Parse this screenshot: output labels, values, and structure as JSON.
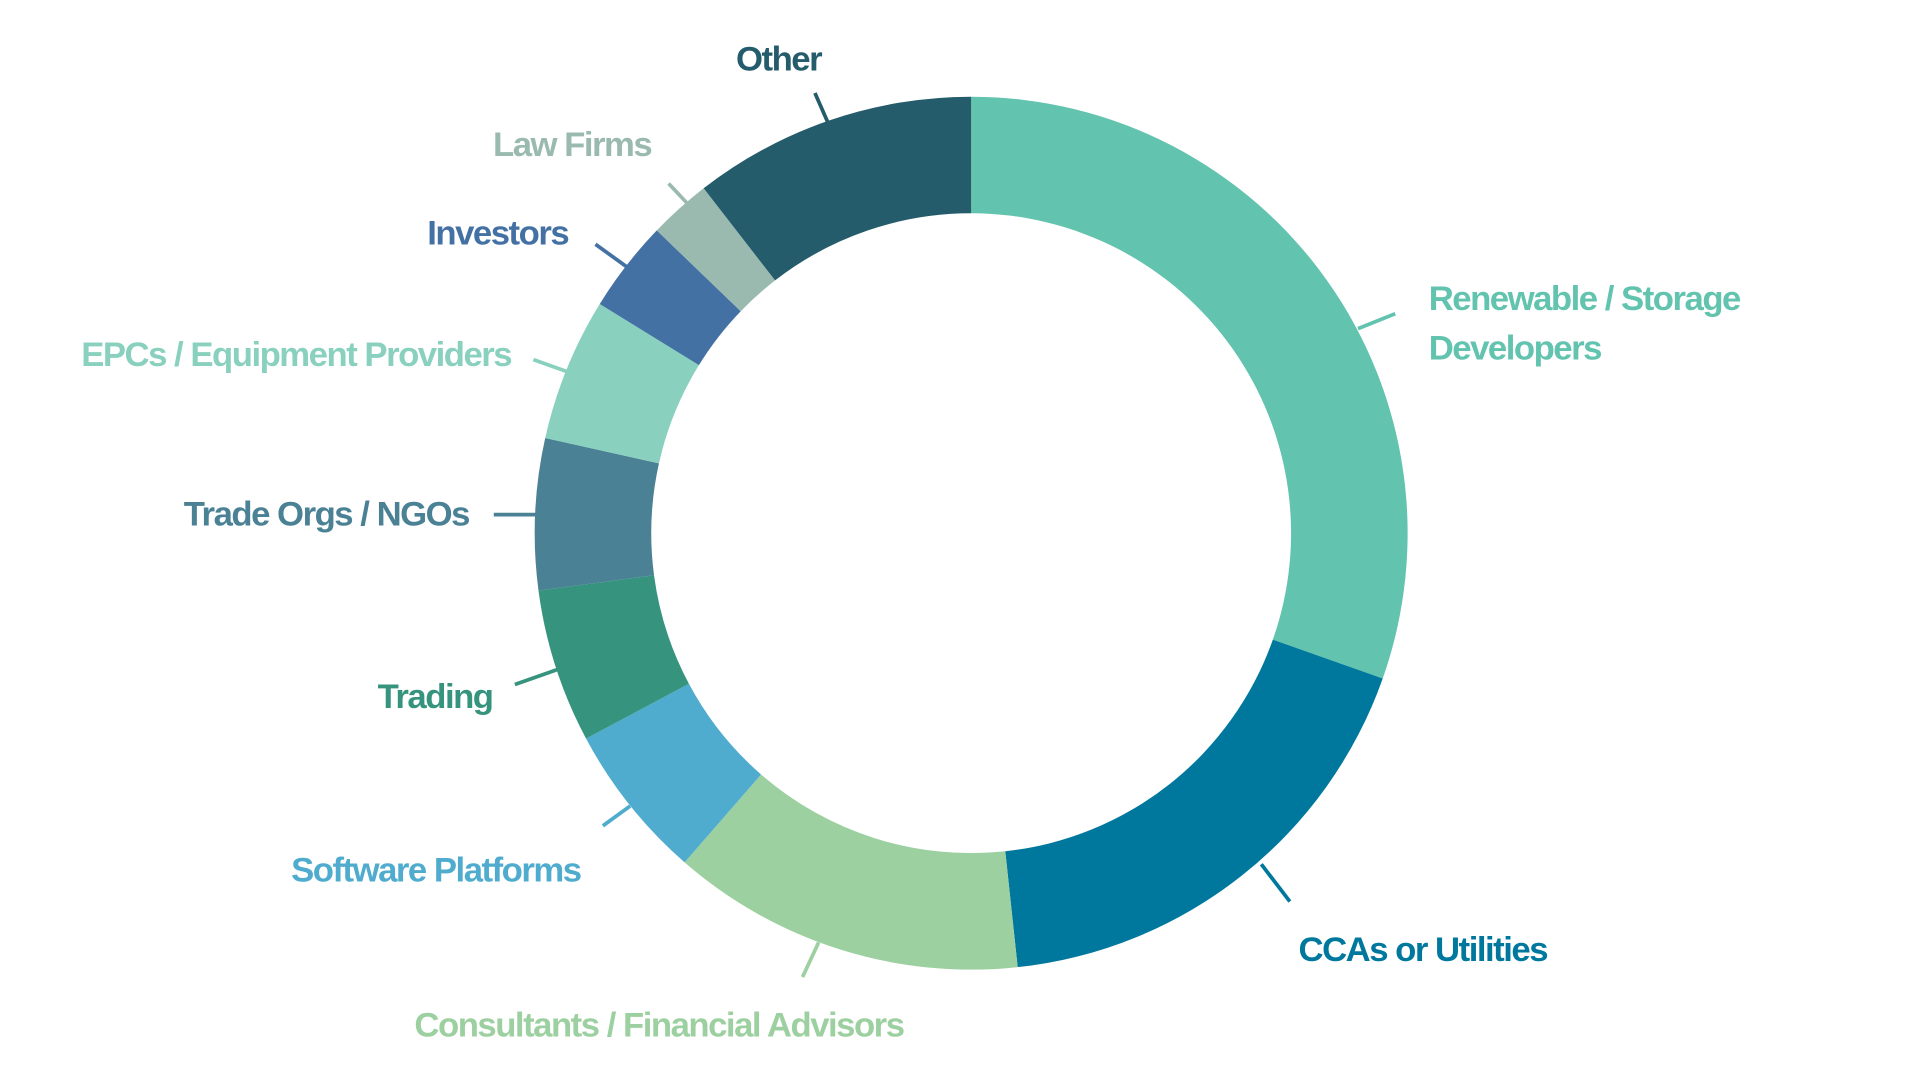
{
  "chart_data": {
    "type": "pie",
    "subtype": "donut",
    "title": "",
    "start_angle": "top, clockwise",
    "categories": [
      "Renewable / Storage Developers",
      "CCAs or Utilities",
      "Consultants / Financial Advisors",
      "Software Platforms",
      "Trading",
      "Trade Orgs / NGOs",
      "EPCs / Equipment Providers",
      "Investors",
      "Law Firms",
      "Other"
    ],
    "label_lines": [
      [
        "Renewable / Storage",
        "Developers"
      ],
      [
        "CCAs or Utilities"
      ],
      [
        "Consultants / Financial Advisors"
      ],
      [
        "Software Platforms"
      ],
      [
        "Trading"
      ],
      [
        "Trade Orgs / NGOs"
      ],
      [
        "EPCs / Equipment Providers"
      ],
      [
        "Investors"
      ],
      [
        "Law Firms"
      ],
      [
        "Other"
      ]
    ],
    "values": [
      30.4,
      17.9,
      13.1,
      5.8,
      5.7,
      5.6,
      5.3,
      3.4,
      2.3,
      10.5
    ],
    "value_unit": "percent (estimated)",
    "colors": [
      "#62c3ae",
      "#00789e",
      "#9dd0a0",
      "#4facce",
      "#36947e",
      "#4a8194",
      "#89d1be",
      "#4471a4",
      "#9abab0",
      "#245c6c"
    ],
    "legend": "none (direct labels)"
  }
}
